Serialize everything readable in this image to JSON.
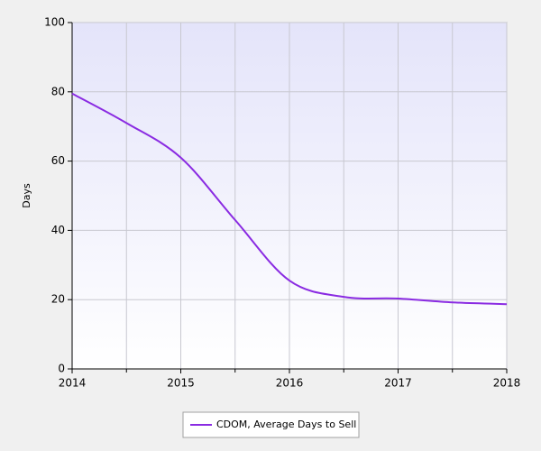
{
  "chart_data": {
    "type": "line",
    "y_label": "Days",
    "x": [
      2014,
      2014.5,
      2015,
      2015.5,
      2016,
      2016.5,
      2017,
      2017.5,
      2018
    ],
    "series": [
      {
        "name": "CDOM, Average Days to Sell",
        "color": "#8a2be2",
        "values": [
          79.5,
          71,
          61,
          43,
          25.5,
          20.8,
          20.3,
          19.2,
          18.7
        ]
      }
    ],
    "xlim": [
      2014,
      2018
    ],
    "xticks": [
      2014,
      2015,
      2016,
      2017,
      2018
    ],
    "x_minor_ticks": [
      2014.5,
      2015.5,
      2016.5,
      2017.5
    ],
    "ylim": [
      0,
      100
    ],
    "yticks": [
      0,
      20,
      40,
      60,
      80,
      100
    ],
    "grid": true,
    "legend": "bottom"
  }
}
